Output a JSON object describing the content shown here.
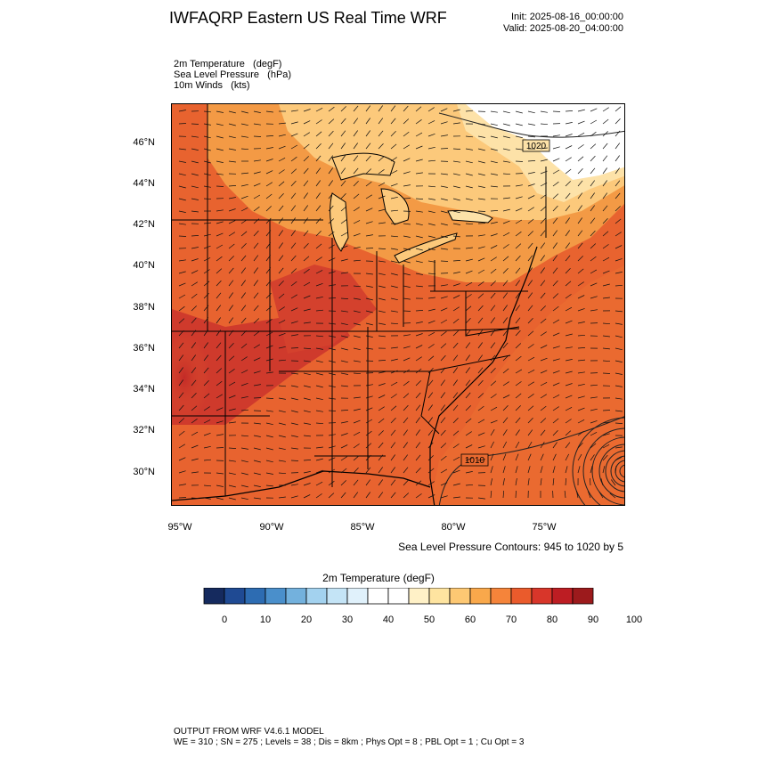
{
  "header": {
    "title": "IWFAQRP Eastern US Real Time WRF",
    "init": "Init: 2025-08-16_00:00:00",
    "valid": "Valid: 2025-08-20_04:00:00"
  },
  "fields": [
    "2m Temperature   (degF)",
    "Sea Level Pressure   (hPa)",
    "10m Winds   (kts)"
  ],
  "map": {
    "lat_labels": [
      "46°N",
      "44°N",
      "42°N",
      "40°N",
      "38°N",
      "36°N",
      "34°N",
      "32°N",
      "30°N"
    ],
    "lon_labels": [
      "95°W",
      "90°W",
      "85°W",
      "80°W",
      "75°W"
    ],
    "contour_labels": [
      "1020",
      "1010"
    ],
    "contour_note": "Sea Level Pressure Contours: 945 to 1020 by 5",
    "colors": {
      "hot": "#c8302a",
      "warm": "#e8602f",
      "mild": "#f39a45",
      "cool": "#fcc97b",
      "cooler": "#fde2a8",
      "white": "#ffffff",
      "ocean": "#ea6a30"
    }
  },
  "colorbar": {
    "title": "2m Temperature   (degF)",
    "labels": [
      "0",
      "10",
      "20",
      "30",
      "40",
      "50",
      "60",
      "70",
      "80",
      "90",
      "100"
    ],
    "colors": [
      "#152a5e",
      "#1f4a93",
      "#2d6cb2",
      "#4a8fcb",
      "#73b1dd",
      "#a3d2ef",
      "#c4e4f6",
      "#e0f1fb",
      "#ffffff",
      "#ffffff",
      "#fff1c7",
      "#fee4a0",
      "#fdc873",
      "#f9a84b",
      "#f5843a",
      "#ea5b2c",
      "#d8362a",
      "#bd1d23",
      "#9c1a1c"
    ]
  },
  "footer": {
    "line1": "OUTPUT FROM WRF V4.6.1 MODEL",
    "line2": "WE = 310 ; SN = 275 ; Levels = 38 ; Dis = 8km ; Phys Opt = 8 ; PBL Opt = 1 ; Cu Opt = 3"
  }
}
